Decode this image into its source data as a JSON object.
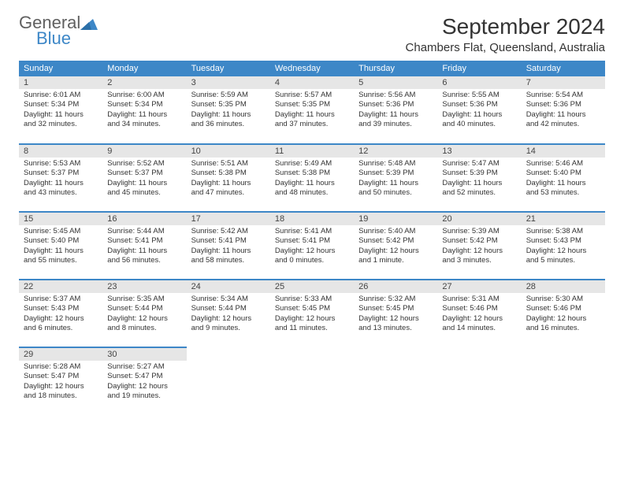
{
  "logo": {
    "line1": "General",
    "line2": "Blue",
    "shape_color": "#3d87c7"
  },
  "title": "September 2024",
  "location": "Chambers Flat, Queensland, Australia",
  "colors": {
    "header_bg": "#3d87c7",
    "header_text": "#ffffff",
    "daynum_bg": "#e6e6e6",
    "border": "#3d87c7",
    "text": "#333333"
  },
  "weekdays": [
    "Sunday",
    "Monday",
    "Tuesday",
    "Wednesday",
    "Thursday",
    "Friday",
    "Saturday"
  ],
  "weeks": [
    [
      {
        "n": "1",
        "sunrise": "Sunrise: 6:01 AM",
        "sunset": "Sunset: 5:34 PM",
        "daylight": "Daylight: 11 hours and 32 minutes."
      },
      {
        "n": "2",
        "sunrise": "Sunrise: 6:00 AM",
        "sunset": "Sunset: 5:34 PM",
        "daylight": "Daylight: 11 hours and 34 minutes."
      },
      {
        "n": "3",
        "sunrise": "Sunrise: 5:59 AM",
        "sunset": "Sunset: 5:35 PM",
        "daylight": "Daylight: 11 hours and 36 minutes."
      },
      {
        "n": "4",
        "sunrise": "Sunrise: 5:57 AM",
        "sunset": "Sunset: 5:35 PM",
        "daylight": "Daylight: 11 hours and 37 minutes."
      },
      {
        "n": "5",
        "sunrise": "Sunrise: 5:56 AM",
        "sunset": "Sunset: 5:36 PM",
        "daylight": "Daylight: 11 hours and 39 minutes."
      },
      {
        "n": "6",
        "sunrise": "Sunrise: 5:55 AM",
        "sunset": "Sunset: 5:36 PM",
        "daylight": "Daylight: 11 hours and 40 minutes."
      },
      {
        "n": "7",
        "sunrise": "Sunrise: 5:54 AM",
        "sunset": "Sunset: 5:36 PM",
        "daylight": "Daylight: 11 hours and 42 minutes."
      }
    ],
    [
      {
        "n": "8",
        "sunrise": "Sunrise: 5:53 AM",
        "sunset": "Sunset: 5:37 PM",
        "daylight": "Daylight: 11 hours and 43 minutes."
      },
      {
        "n": "9",
        "sunrise": "Sunrise: 5:52 AM",
        "sunset": "Sunset: 5:37 PM",
        "daylight": "Daylight: 11 hours and 45 minutes."
      },
      {
        "n": "10",
        "sunrise": "Sunrise: 5:51 AM",
        "sunset": "Sunset: 5:38 PM",
        "daylight": "Daylight: 11 hours and 47 minutes."
      },
      {
        "n": "11",
        "sunrise": "Sunrise: 5:49 AM",
        "sunset": "Sunset: 5:38 PM",
        "daylight": "Daylight: 11 hours and 48 minutes."
      },
      {
        "n": "12",
        "sunrise": "Sunrise: 5:48 AM",
        "sunset": "Sunset: 5:39 PM",
        "daylight": "Daylight: 11 hours and 50 minutes."
      },
      {
        "n": "13",
        "sunrise": "Sunrise: 5:47 AM",
        "sunset": "Sunset: 5:39 PM",
        "daylight": "Daylight: 11 hours and 52 minutes."
      },
      {
        "n": "14",
        "sunrise": "Sunrise: 5:46 AM",
        "sunset": "Sunset: 5:40 PM",
        "daylight": "Daylight: 11 hours and 53 minutes."
      }
    ],
    [
      {
        "n": "15",
        "sunrise": "Sunrise: 5:45 AM",
        "sunset": "Sunset: 5:40 PM",
        "daylight": "Daylight: 11 hours and 55 minutes."
      },
      {
        "n": "16",
        "sunrise": "Sunrise: 5:44 AM",
        "sunset": "Sunset: 5:41 PM",
        "daylight": "Daylight: 11 hours and 56 minutes."
      },
      {
        "n": "17",
        "sunrise": "Sunrise: 5:42 AM",
        "sunset": "Sunset: 5:41 PM",
        "daylight": "Daylight: 11 hours and 58 minutes."
      },
      {
        "n": "18",
        "sunrise": "Sunrise: 5:41 AM",
        "sunset": "Sunset: 5:41 PM",
        "daylight": "Daylight: 12 hours and 0 minutes."
      },
      {
        "n": "19",
        "sunrise": "Sunrise: 5:40 AM",
        "sunset": "Sunset: 5:42 PM",
        "daylight": "Daylight: 12 hours and 1 minute."
      },
      {
        "n": "20",
        "sunrise": "Sunrise: 5:39 AM",
        "sunset": "Sunset: 5:42 PM",
        "daylight": "Daylight: 12 hours and 3 minutes."
      },
      {
        "n": "21",
        "sunrise": "Sunrise: 5:38 AM",
        "sunset": "Sunset: 5:43 PM",
        "daylight": "Daylight: 12 hours and 5 minutes."
      }
    ],
    [
      {
        "n": "22",
        "sunrise": "Sunrise: 5:37 AM",
        "sunset": "Sunset: 5:43 PM",
        "daylight": "Daylight: 12 hours and 6 minutes."
      },
      {
        "n": "23",
        "sunrise": "Sunrise: 5:35 AM",
        "sunset": "Sunset: 5:44 PM",
        "daylight": "Daylight: 12 hours and 8 minutes."
      },
      {
        "n": "24",
        "sunrise": "Sunrise: 5:34 AM",
        "sunset": "Sunset: 5:44 PM",
        "daylight": "Daylight: 12 hours and 9 minutes."
      },
      {
        "n": "25",
        "sunrise": "Sunrise: 5:33 AM",
        "sunset": "Sunset: 5:45 PM",
        "daylight": "Daylight: 12 hours and 11 minutes."
      },
      {
        "n": "26",
        "sunrise": "Sunrise: 5:32 AM",
        "sunset": "Sunset: 5:45 PM",
        "daylight": "Daylight: 12 hours and 13 minutes."
      },
      {
        "n": "27",
        "sunrise": "Sunrise: 5:31 AM",
        "sunset": "Sunset: 5:46 PM",
        "daylight": "Daylight: 12 hours and 14 minutes."
      },
      {
        "n": "28",
        "sunrise": "Sunrise: 5:30 AM",
        "sunset": "Sunset: 5:46 PM",
        "daylight": "Daylight: 12 hours and 16 minutes."
      }
    ],
    [
      {
        "n": "29",
        "sunrise": "Sunrise: 5:28 AM",
        "sunset": "Sunset: 5:47 PM",
        "daylight": "Daylight: 12 hours and 18 minutes."
      },
      {
        "n": "30",
        "sunrise": "Sunrise: 5:27 AM",
        "sunset": "Sunset: 5:47 PM",
        "daylight": "Daylight: 12 hours and 19 minutes."
      },
      null,
      null,
      null,
      null,
      null
    ]
  ]
}
